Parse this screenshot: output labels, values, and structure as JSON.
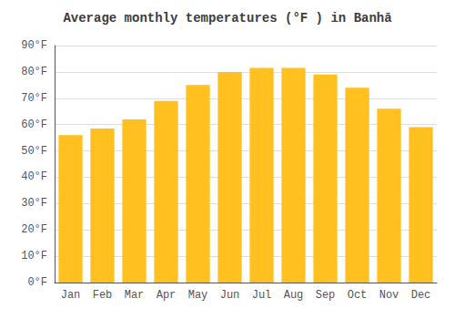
{
  "chart_data": {
    "type": "bar",
    "title": "Average monthly temperatures (°F ) in Banhā",
    "categories": [
      "Jan",
      "Feb",
      "Mar",
      "Apr",
      "May",
      "Jun",
      "Jul",
      "Aug",
      "Sep",
      "Oct",
      "Nov",
      "Dec"
    ],
    "values": [
      56,
      58.5,
      62,
      69,
      75,
      80,
      81.5,
      81.5,
      79,
      74,
      66,
      59
    ],
    "color": "#FFC020",
    "ylim": [
      0,
      90
    ],
    "yticks": [
      {
        "value": 0,
        "label": "0°F"
      },
      {
        "value": 10,
        "label": "10°F"
      },
      {
        "value": 20,
        "label": "20°F"
      },
      {
        "value": 30,
        "label": "30°F"
      },
      {
        "value": 40,
        "label": "40°F"
      },
      {
        "value": 50,
        "label": "50°F"
      },
      {
        "value": 60,
        "label": "60°F"
      },
      {
        "value": 70,
        "label": "70°F"
      },
      {
        "value": 80,
        "label": "80°F"
      },
      {
        "value": 90,
        "label": "90°F"
      }
    ],
    "grid": true
  }
}
